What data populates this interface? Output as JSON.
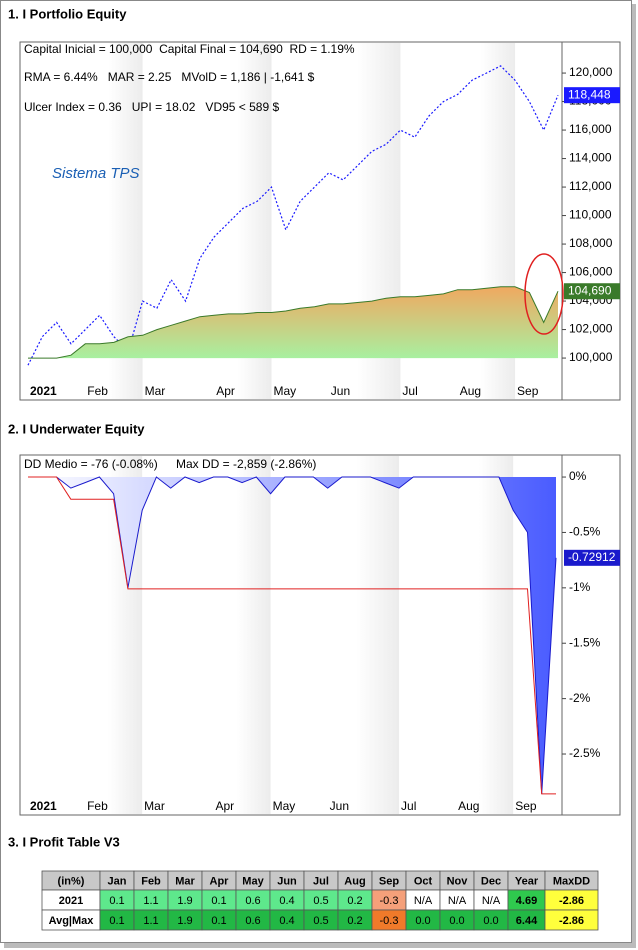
{
  "chart_data": [
    {
      "type": "line",
      "title": "1. I Portfolio Equity",
      "annotations": [
        "Capital Inicial = 100,000  Capital Final = 104,690  RD = 1.19%",
        "RMA = 6.44%   MAR = 2.25   MVolD = 1,186 | -1,641 $",
        "Ulcer Index = 0.36   UPI = 18.02   VD95 < 589 $",
        "Sistema TPS"
      ],
      "categories": [
        "2021",
        null,
        null,
        null,
        "Feb",
        null,
        null,
        null,
        "Mar",
        null,
        null,
        null,
        null,
        "Apr",
        null,
        null,
        null,
        "May",
        null,
        null,
        null,
        "Jun",
        null,
        null,
        null,
        null,
        "Jul",
        null,
        null,
        null,
        "Aug",
        null,
        null,
        null,
        "Sep",
        null,
        null,
        null
      ],
      "area_base": 100000,
      "series": [
        {
          "color": "#1a1aff",
          "dash": true,
          "values": [
            99500,
            101500,
            102500,
            101000,
            102000,
            103000,
            101500,
            100500,
            104000,
            103500,
            105500,
            104000,
            107000,
            108500,
            109500,
            110500,
            111000,
            112000,
            109000,
            111000,
            112000,
            113000,
            112500,
            113500,
            114500,
            115000,
            116000,
            115500,
            117000,
            118000,
            118500,
            119500,
            120000,
            120500,
            119500,
            118000,
            116000,
            118448
          ],
          "value_labels": [
            null,
            null,
            null,
            null,
            null,
            null,
            null,
            null,
            null,
            null,
            null,
            null,
            null,
            null,
            null,
            null,
            null,
            null,
            null,
            null,
            null,
            null,
            null,
            null,
            null,
            null,
            null,
            null,
            null,
            null,
            null,
            null,
            null,
            null,
            null,
            null,
            null,
            "118,448"
          ]
        },
        {
          "color": "#3a7a2a",
          "area": true,
          "values": [
            100000,
            100000,
            100000,
            100200,
            101000,
            101000,
            101100,
            101500,
            101600,
            102000,
            102300,
            102600,
            102900,
            103000,
            103100,
            103100,
            103200,
            103200,
            103300,
            103500,
            103600,
            103800,
            103800,
            103900,
            104000,
            104200,
            104300,
            104300,
            104400,
            104500,
            104800,
            104800,
            104900,
            105000,
            105000,
            104600,
            102500,
            104690
          ],
          "value_labels": [
            null,
            null,
            null,
            null,
            null,
            null,
            null,
            null,
            null,
            null,
            null,
            null,
            null,
            null,
            null,
            null,
            null,
            null,
            null,
            null,
            null,
            null,
            null,
            null,
            null,
            null,
            null,
            null,
            null,
            null,
            null,
            null,
            null,
            null,
            null,
            null,
            null,
            "104,690"
          ]
        }
      ],
      "ylim": [
        98250,
        122180
      ],
      "yticks": [
        {
          "value": 100000,
          "label": "100,000"
        },
        {
          "value": 102000,
          "label": "102,000"
        },
        {
          "value": 104000,
          "label": "104,000"
        },
        {
          "value": 106000,
          "label": "106,000"
        },
        {
          "value": 108000,
          "label": "108,000"
        },
        {
          "value": 110000,
          "label": "110,000"
        },
        {
          "value": 112000,
          "label": "112,000"
        },
        {
          "value": 114000,
          "label": "114,000"
        },
        {
          "value": 116000,
          "label": "116,000"
        },
        {
          "value": 118000,
          "label": "118,000"
        },
        {
          "value": 120000,
          "label": "120,000"
        }
      ],
      "grid": false
    },
    {
      "type": "line",
      "title": "2. I Underwater Equity",
      "annotations": [
        "DD Medio = -76 (-0.08%)",
        "Max DD = -2,859 (-2.86%)"
      ],
      "categories": [
        "2021",
        null,
        null,
        null,
        "Feb",
        null,
        null,
        null,
        "Mar",
        null,
        null,
        null,
        null,
        "Apr",
        null,
        null,
        null,
        "May",
        null,
        null,
        null,
        "Jun",
        null,
        null,
        null,
        null,
        "Jul",
        null,
        null,
        null,
        "Aug",
        null,
        null,
        null,
        "Sep",
        null,
        null,
        null
      ],
      "area_base": 0,
      "series": [
        {
          "color": "#1a1acc",
          "area": true,
          "values": [
            0,
            0,
            0,
            -0.1,
            -0.05,
            0,
            -0.15,
            -1.0,
            -0.3,
            0,
            -0.1,
            0,
            -0.05,
            0,
            0,
            -0.05,
            0,
            -0.15,
            0,
            0,
            0,
            -0.1,
            0,
            0,
            0,
            -0.05,
            -0.1,
            0,
            0,
            0,
            0,
            0,
            0,
            0,
            -0.3,
            -0.5,
            -2.86,
            -0.72912
          ],
          "value_labels": [
            null,
            null,
            null,
            null,
            null,
            null,
            null,
            null,
            null,
            null,
            null,
            null,
            null,
            null,
            null,
            null,
            null,
            null,
            null,
            null,
            null,
            null,
            null,
            null,
            null,
            null,
            null,
            null,
            null,
            null,
            null,
            null,
            null,
            null,
            null,
            null,
            null,
            "-0.72912"
          ]
        },
        {
          "color": "#e02020",
          "values": [
            0,
            0,
            0,
            -0.2,
            -0.2,
            -0.2,
            -0.2,
            -1.01,
            -1.01,
            -1.01,
            -1.01,
            -1.01,
            -1.01,
            -1.01,
            -1.01,
            -1.01,
            -1.01,
            -1.01,
            -1.01,
            -1.01,
            -1.01,
            -1.01,
            -1.01,
            -1.01,
            -1.01,
            -1.01,
            -1.01,
            -1.01,
            -1.01,
            -1.01,
            -1.01,
            -1.01,
            -1.01,
            -1.01,
            -1.01,
            -1.01,
            -2.86,
            -2.86
          ]
        }
      ],
      "ylim": [
        -2.897,
        0.199
      ],
      "yticks": [
        {
          "value": 0,
          "label": "0%"
        },
        {
          "value": -0.5,
          "label": "-0.5%"
        },
        {
          "value": -1,
          "label": "-1%"
        },
        {
          "value": -1.5,
          "label": "-1.5%"
        },
        {
          "value": -2,
          "label": "-2%"
        },
        {
          "value": -2.5,
          "label": "-2.5%"
        }
      ],
      "grid": false
    }
  ],
  "table": {
    "title": "3. I Profit Table V3",
    "header": [
      "(in%)",
      "Jan",
      "Feb",
      "Mar",
      "Apr",
      "May",
      "Jun",
      "Jul",
      "Aug",
      "Sep",
      "Oct",
      "Nov",
      "Dec",
      "Year",
      "MaxDD"
    ],
    "rows": [
      {
        "cells": [
          "2021",
          "0.1",
          "1.1",
          "1.9",
          "0.1",
          "0.6",
          "0.4",
          "0.5",
          "0.2",
          "-0.3",
          "N/A",
          "N/A",
          "N/A",
          "4.69",
          "-2.86"
        ],
        "colors": [
          "#ffffff",
          "#5ee88c",
          "#5ee88c",
          "#5ee88c",
          "#5ee88c",
          "#5ee88c",
          "#5ee88c",
          "#5ee88c",
          "#5ee88c",
          "#f5a07a",
          "#ffffff",
          "#ffffff",
          "#ffffff",
          "#2fc94e",
          "#ffff3c"
        ]
      },
      {
        "cells": [
          "Avg|Max",
          "0.1",
          "1.1",
          "1.9",
          "0.1",
          "0.6",
          "0.4",
          "0.5",
          "0.2",
          "-0.3",
          "0.0",
          "0.0",
          "0.0",
          "6.44",
          "-2.86"
        ],
        "colors": [
          "#ffffff",
          "#22b845",
          "#22b845",
          "#22b845",
          "#22b845",
          "#22b845",
          "#22b845",
          "#22b845",
          "#22b845",
          "#f07a2a",
          "#22b845",
          "#22b845",
          "#22b845",
          "#22b845",
          "#ffff3c"
        ]
      }
    ]
  }
}
